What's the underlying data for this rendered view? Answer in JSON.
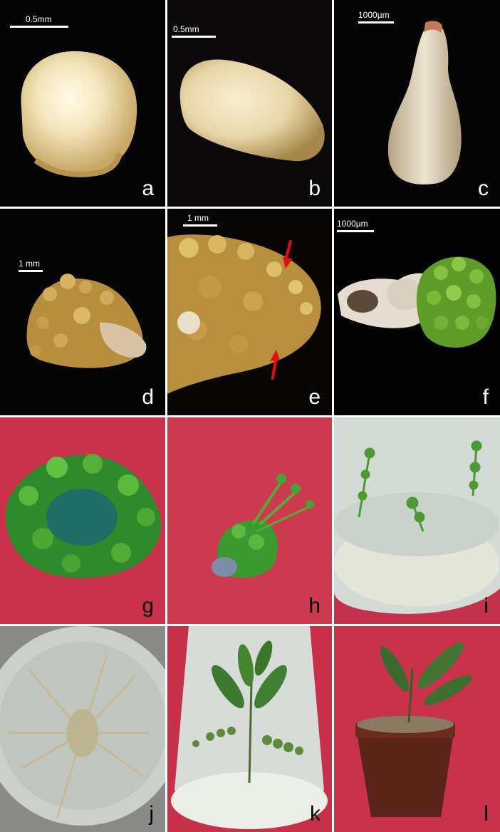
{
  "panels": [
    {
      "id": "a",
      "label": "a",
      "scale_text": "0.5mm"
    },
    {
      "id": "b",
      "label": "b",
      "scale_text": "0.5mm"
    },
    {
      "id": "c",
      "label": "c",
      "scale_text": "1000µm"
    },
    {
      "id": "d",
      "label": "d",
      "scale_text": "1 mm"
    },
    {
      "id": "e",
      "label": "e",
      "scale_text": "1 mm"
    },
    {
      "id": "f",
      "label": "f",
      "scale_text": "1000µm"
    },
    {
      "id": "g",
      "label": "g"
    },
    {
      "id": "h",
      "label": "h"
    },
    {
      "id": "i",
      "label": "i"
    },
    {
      "id": "j",
      "label": "j"
    },
    {
      "id": "k",
      "label": "k"
    },
    {
      "id": "l",
      "label": "l"
    }
  ],
  "colors": {
    "dark_background": "#050505",
    "fabric_red": "#c9324a",
    "callus_yellow": "#c9a24a",
    "shoot_green": "#3f9a2a",
    "seed_cream": "#efe2b8",
    "arrow_red": "#e01010"
  }
}
